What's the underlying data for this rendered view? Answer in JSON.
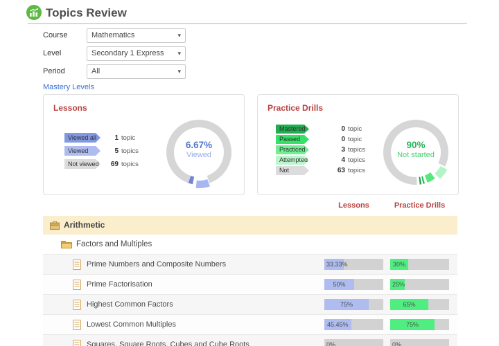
{
  "page_title": "Topics Review",
  "filters": [
    {
      "label": "Course",
      "value": "Mathematics"
    },
    {
      "label": "Level",
      "value": "Secondary 1 Express"
    },
    {
      "label": "Period",
      "value": "All"
    }
  ],
  "mastery_levels_label": "Mastery Levels",
  "palette": {
    "accent_green": "#5bb944",
    "heading_red": "#b5423f",
    "link_blue": "#3a6fd8",
    "strand_bar_bg": "#fbeecd",
    "bar_track": "#d2d2d2",
    "lessons_bar_fill": "#aebcf0",
    "practice_bar_fill": "#4fee80"
  },
  "chart_data": [
    {
      "type": "donut",
      "title": "Lessons",
      "legend": [
        {
          "label": "Viewed all",
          "count": "1",
          "unit": "topic",
          "color": "#8298e3"
        },
        {
          "label": "Viewed",
          "count": "5",
          "unit": "topics",
          "color": "#aebcf0"
        },
        {
          "label": "Not viewed",
          "count": "69",
          "unit": "topics",
          "color": "#dcdcdc"
        }
      ],
      "center": {
        "value": "6.67%",
        "label": "Viewed"
      },
      "center_colors": {
        "value": "#5377d2",
        "label": "#97abe9"
      },
      "ring": {
        "track_color": "#d6d6d6",
        "gap_start": 161,
        "gap_end": 199
      },
      "segments": [
        {
          "name": "Viewed",
          "color": "#a7b6ef",
          "start": 161,
          "end": 186,
          "explode": 5
        },
        {
          "name": "Viewed all",
          "color": "#7186d6",
          "start": 191,
          "end": 199,
          "explode": 0
        }
      ]
    },
    {
      "type": "donut",
      "title": "Practice Drills",
      "legend": [
        {
          "label": "Mastered",
          "count": "0",
          "unit": "topic",
          "color": "#21ae50"
        },
        {
          "label": "Passed",
          "count": "0",
          "unit": "topic",
          "color": "#35e166"
        },
        {
          "label": "Practiced",
          "count": "3",
          "unit": "topics",
          "color": "#71ef92"
        },
        {
          "label": "Attempted",
          "count": "4",
          "unit": "topics",
          "color": "#bdf6cd"
        },
        {
          "label": "Not started",
          "count": "63",
          "unit": "topics",
          "color": "#dcdcdc"
        }
      ],
      "center": {
        "value": "90%",
        "label": "Not started"
      },
      "center_colors": {
        "value": "#27b457",
        "label": "#46cf70"
      },
      "ring": {
        "track_color": "#d6d6d6",
        "gap_start": 116,
        "gap_end": 178
      },
      "segments": [
        {
          "name": "Attempted",
          "color": "#b2f4c5",
          "start": 118,
          "end": 139,
          "explode": 5
        },
        {
          "name": "Practiced",
          "color": "#55e87d",
          "start": 144,
          "end": 159,
          "explode": 0
        },
        {
          "name": "Passed",
          "color": "#21c153",
          "start": 164,
          "end": 167,
          "explode": 0
        },
        {
          "name": "Mastered",
          "color": "#1b9e47",
          "start": 170,
          "end": 173,
          "explode": 0
        }
      ]
    }
  ],
  "table": {
    "column_headers": [
      "Lessons",
      "Practice Drills"
    ],
    "strand": "Arithmetic",
    "subtopic": "Factors and Multiples",
    "rows": [
      {
        "title": "Prime Numbers and Composite Numbers",
        "lessons": "33.33%",
        "practice": "30%"
      },
      {
        "title": "Prime Factorisation",
        "lessons": "50%",
        "practice": "25%"
      },
      {
        "title": "Highest Common Factors",
        "lessons": "75%",
        "practice": "65%"
      },
      {
        "title": "Lowest Common Multiples",
        "lessons": "45.45%",
        "practice": "75%"
      },
      {
        "title": "Squares, Square Roots, Cubes and Cube Roots",
        "lessons": "0%",
        "practice": "0%"
      }
    ]
  }
}
